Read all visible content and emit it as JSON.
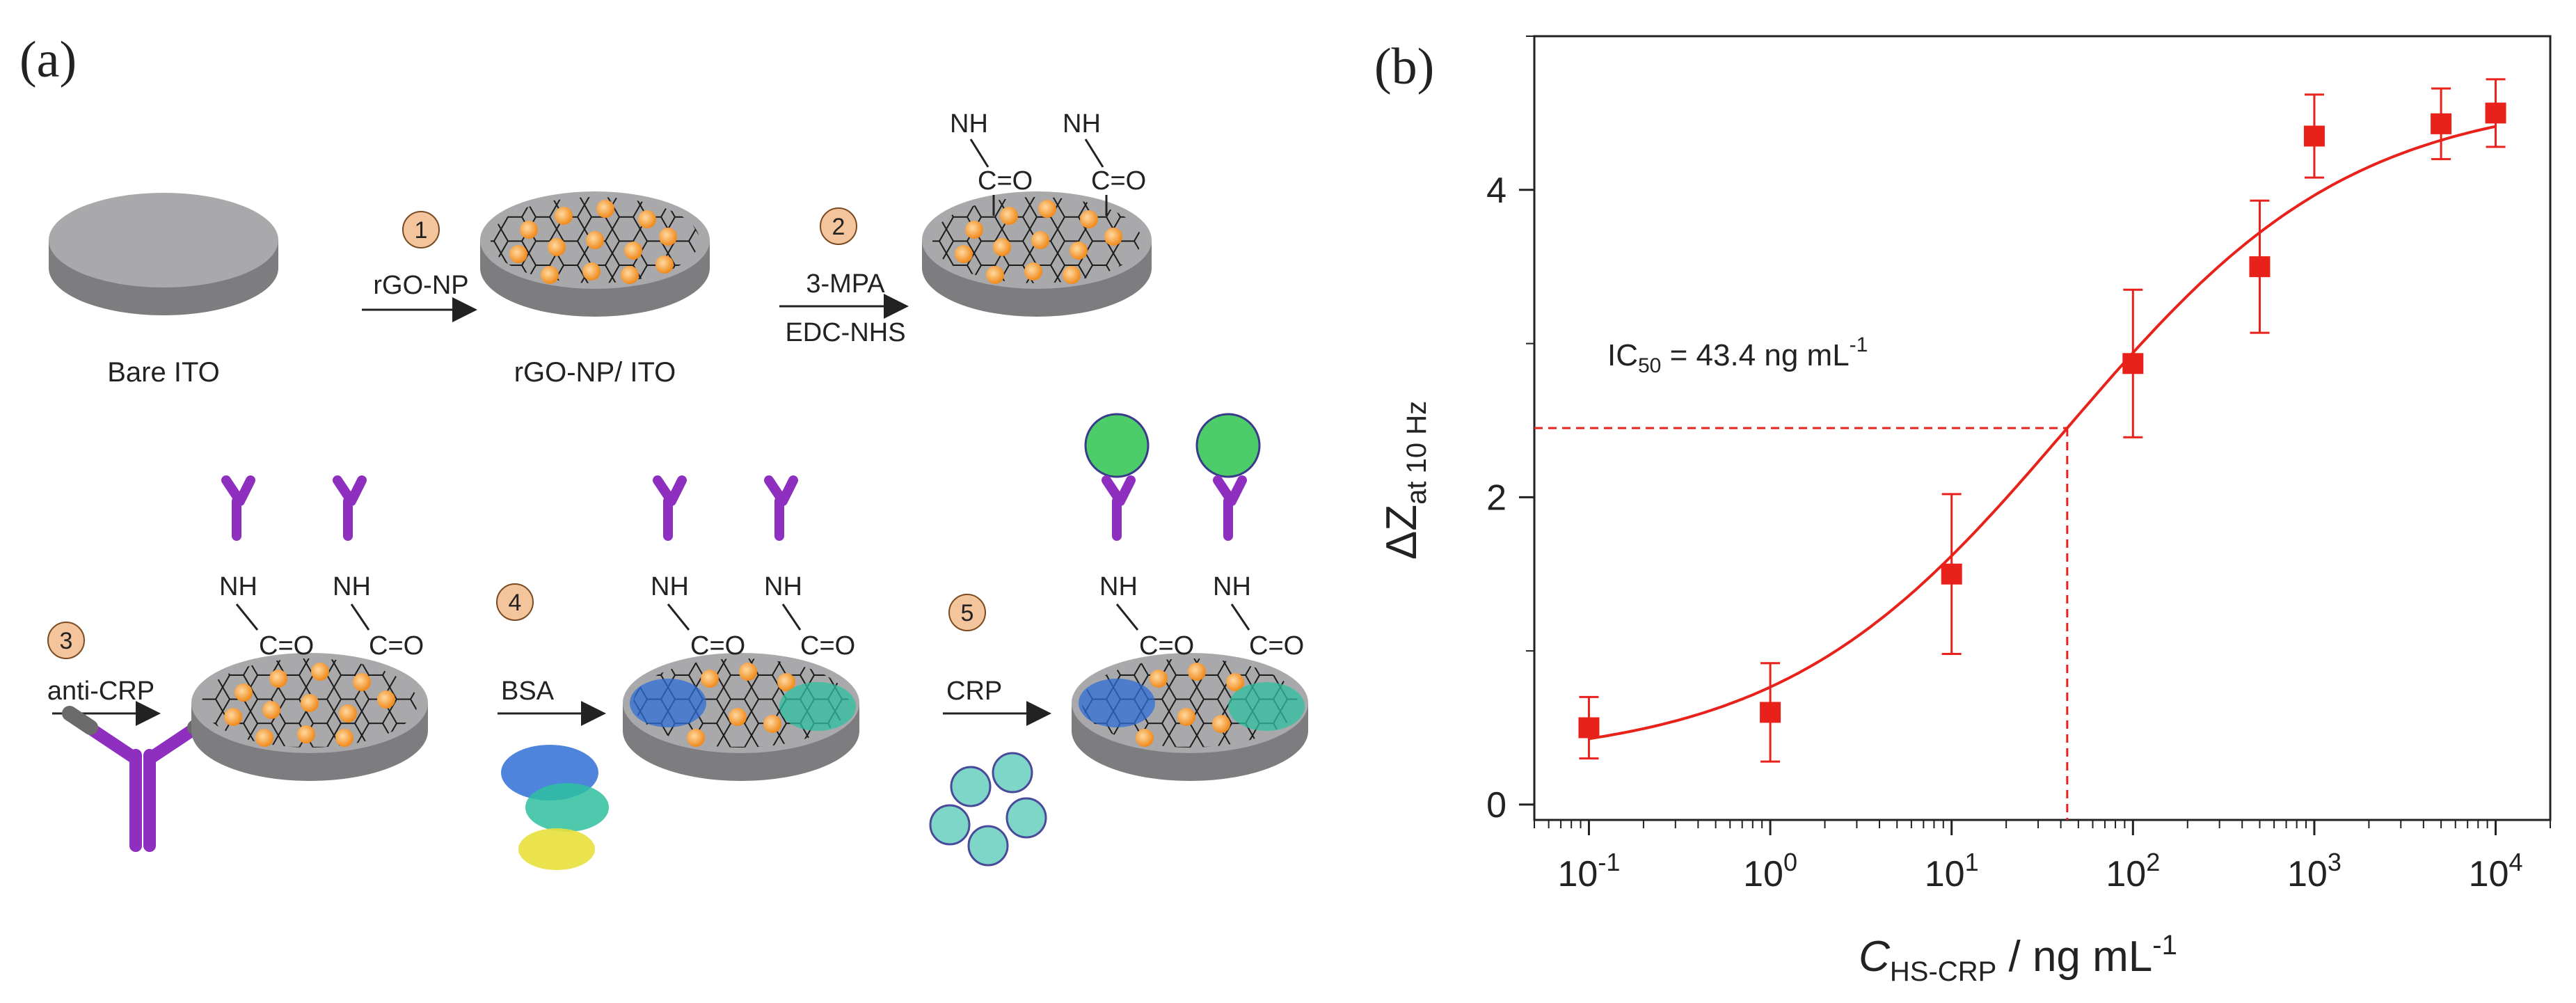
{
  "panel_a": {
    "label": "(a)",
    "electrode_labels": [
      "Bare ITO",
      "rGO-NP/ ITO"
    ],
    "steps": [
      {
        "num": "1",
        "lines": [
          "rGO-NP"
        ]
      },
      {
        "num": "2",
        "lines": [
          "3-MPA",
          "EDC-NHS"
        ]
      },
      {
        "num": "3",
        "lines": [
          "anti-CRP"
        ]
      },
      {
        "num": "4",
        "lines": [
          "BSA"
        ]
      },
      {
        "num": "5",
        "lines": [
          "CRP"
        ]
      }
    ],
    "chem": {
      "nh": "NH",
      "co": "C=O"
    },
    "colors": {
      "disk_top": "#a9a9ab",
      "disk_side": "#7d7d80",
      "nanoparticle": "#f39a2e",
      "antibody": "#8f2fbf",
      "step_circle": "#f4c49c"
    }
  },
  "panel_b": {
    "label": "(b)",
    "annotation": {
      "prefix": "IC",
      "sub": "50",
      "suffix": " = 43.4 ng mL",
      "sup": "-1"
    },
    "y_axis_title": {
      "main": "ΔZ",
      "sub": "at 10 Hz"
    },
    "x_axis_title": {
      "main": "C",
      "sub": "HS-CRP",
      "rest": " / ng mL",
      "sup": "-1"
    },
    "x_tick_labels": [
      {
        "base": "10",
        "exp": "-1"
      },
      {
        "base": "10",
        "exp": "0"
      },
      {
        "base": "10",
        "exp": "1"
      },
      {
        "base": "10",
        "exp": "2"
      },
      {
        "base": "10",
        "exp": "3"
      },
      {
        "base": "10",
        "exp": "4"
      }
    ],
    "y_tick_labels": [
      "0",
      "2",
      "4"
    ]
  },
  "chart_data": {
    "type": "scatter",
    "xscale": "log",
    "xlim": [
      0.05,
      20000
    ],
    "ylim": [
      -0.1,
      5.0
    ],
    "xticks": [
      0.1,
      1,
      10,
      100,
      1000,
      10000
    ],
    "yticks": [
      0,
      2,
      4
    ],
    "grid": false,
    "points": {
      "x": [
        0.1,
        1,
        10,
        100,
        500,
        1000,
        5000,
        10000
      ],
      "y": [
        0.5,
        0.6,
        1.5,
        2.87,
        3.5,
        4.35,
        4.43,
        4.5
      ],
      "err": [
        0.2,
        0.32,
        0.52,
        0.48,
        0.43,
        0.27,
        0.23,
        0.22
      ]
    },
    "fit": {
      "bottom": 0.28,
      "top": 4.62,
      "ic50": 43.4,
      "hill": 0.55
    },
    "ic50_marker": {
      "x": 43.4,
      "y": 2.45
    },
    "colors": {
      "series": "#e8221b",
      "guide": "#e8221b"
    }
  }
}
